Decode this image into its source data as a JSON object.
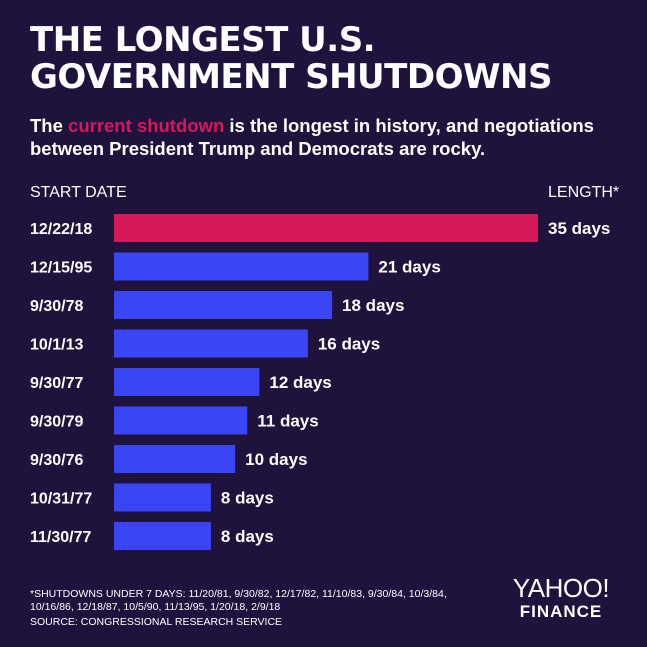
{
  "title_line1": "THE LONGEST U.S.",
  "title_line2": "GOVERNMENT SHUTDOWNS",
  "subtitle_pre": "The ",
  "subtitle_highlight": "current shutdown",
  "subtitle_post": " is the longest in history, and negotiations between President Trump and Democrats are rocky.",
  "col_left": "START DATE",
  "col_right": "LENGTH*",
  "footnote": "*SHUTDOWNS UNDER 7 DAYS: 11/20/81, 9/30/82, 12/17/82, 11/10/83, 9/30/84, 10/3/84, 10/16/86, 12/18/87, 10/5/90, 11/13/95, 1/20/18, 2/9/18",
  "source": "SOURCE:  CONGRESSIONAL RESEARCH SERVICE",
  "logo_top": "YAHOO!",
  "logo_bottom": "FINANCE",
  "colors": {
    "background": "#1f133d",
    "highlight": "#d6185a",
    "bar": "#3a45f5",
    "text": "#ffffff"
  },
  "chart_data": {
    "type": "bar",
    "orientation": "horizontal",
    "categories": [
      "12/22/18",
      "12/15/95",
      "9/30/78",
      "10/1/13",
      "9/30/77",
      "9/30/79",
      "9/30/76",
      "10/31/77",
      "11/30/77"
    ],
    "values": [
      35,
      21,
      18,
      16,
      12,
      11,
      10,
      8,
      8
    ],
    "value_labels": [
      "35 days",
      "21 days",
      "18 days",
      "16 days",
      "12 days",
      "11 days",
      "10 days",
      "8 days",
      "8 days"
    ],
    "highlight_index": 0,
    "xlim": [
      0,
      35
    ]
  }
}
